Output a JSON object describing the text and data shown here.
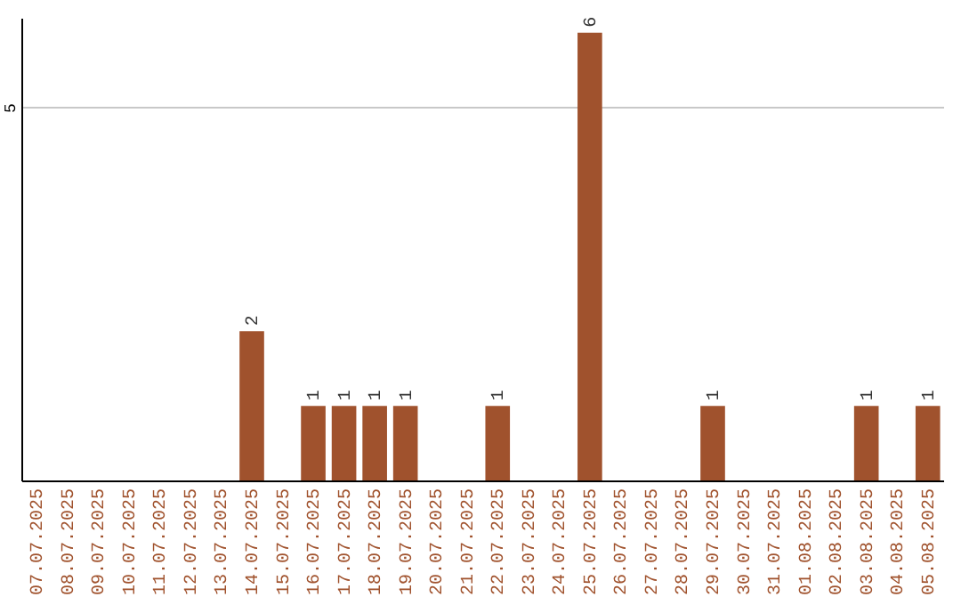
{
  "chart_data": {
    "type": "bar",
    "categories": [
      "07.07.2025",
      "08.07.2025",
      "09.07.2025",
      "10.07.2025",
      "11.07.2025",
      "12.07.2025",
      "13.07.2025",
      "14.07.2025",
      "15.07.2025",
      "16.07.2025",
      "17.07.2025",
      "18.07.2025",
      "19.07.2025",
      "20.07.2025",
      "21.07.2025",
      "22.07.2025",
      "23.07.2025",
      "24.07.2025",
      "25.07.2025",
      "26.07.2025",
      "27.07.2025",
      "28.07.2025",
      "29.07.2025",
      "30.07.2025",
      "31.07.2025",
      "01.08.2025",
      "02.08.2025",
      "03.08.2025",
      "04.08.2025",
      "05.08.2025"
    ],
    "values": [
      0,
      0,
      0,
      0,
      0,
      0,
      0,
      2,
      0,
      1,
      1,
      1,
      1,
      0,
      0,
      1,
      0,
      0,
      6,
      0,
      0,
      0,
      1,
      0,
      0,
      0,
      0,
      1,
      0,
      1
    ],
    "value_labels": [
      null,
      null,
      null,
      null,
      null,
      null,
      null,
      "2",
      null,
      "1",
      "1",
      "1",
      "1",
      null,
      null,
      "1",
      null,
      null,
      "6",
      null,
      null,
      null,
      "1",
      null,
      null,
      null,
      null,
      "1",
      null,
      "1"
    ],
    "color": "#a0522d",
    "ylim": [
      0,
      6.2
    ],
    "yticks": [
      5
    ],
    "grid": "y"
  }
}
